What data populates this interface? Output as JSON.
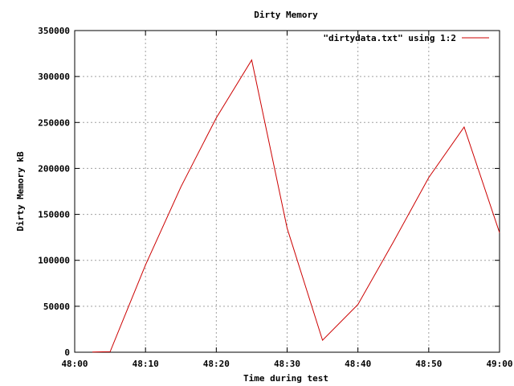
{
  "chart_data": {
    "type": "line",
    "title": "Dirty Memory",
    "xlabel": "Time during test",
    "ylabel": "Dirty Memory kB",
    "x_ticks": [
      "48:00",
      "48:10",
      "48:20",
      "48:30",
      "48:40",
      "48:50",
      "49:00"
    ],
    "y_ticks": [
      "0",
      "50000",
      "100000",
      "150000",
      "200000",
      "250000",
      "300000",
      "350000"
    ],
    "xlim": [
      "48:00",
      "49:00"
    ],
    "ylim": [
      0,
      350000
    ],
    "grid": true,
    "legend_position": "top-right",
    "series": [
      {
        "name": "\"dirtydata.txt\" using 1:2",
        "color": "#cc0000",
        "x": [
          "48:02.5",
          "48:05",
          "48:10",
          "48:15",
          "48:20",
          "48:25",
          "48:30",
          "48:35",
          "48:40",
          "48:45",
          "48:50",
          "48:55",
          "49:00"
        ],
        "y": [
          300,
          500,
          95000,
          180000,
          255000,
          318000,
          135000,
          13000,
          52000,
          120000,
          190000,
          245000,
          130000
        ]
      }
    ]
  }
}
